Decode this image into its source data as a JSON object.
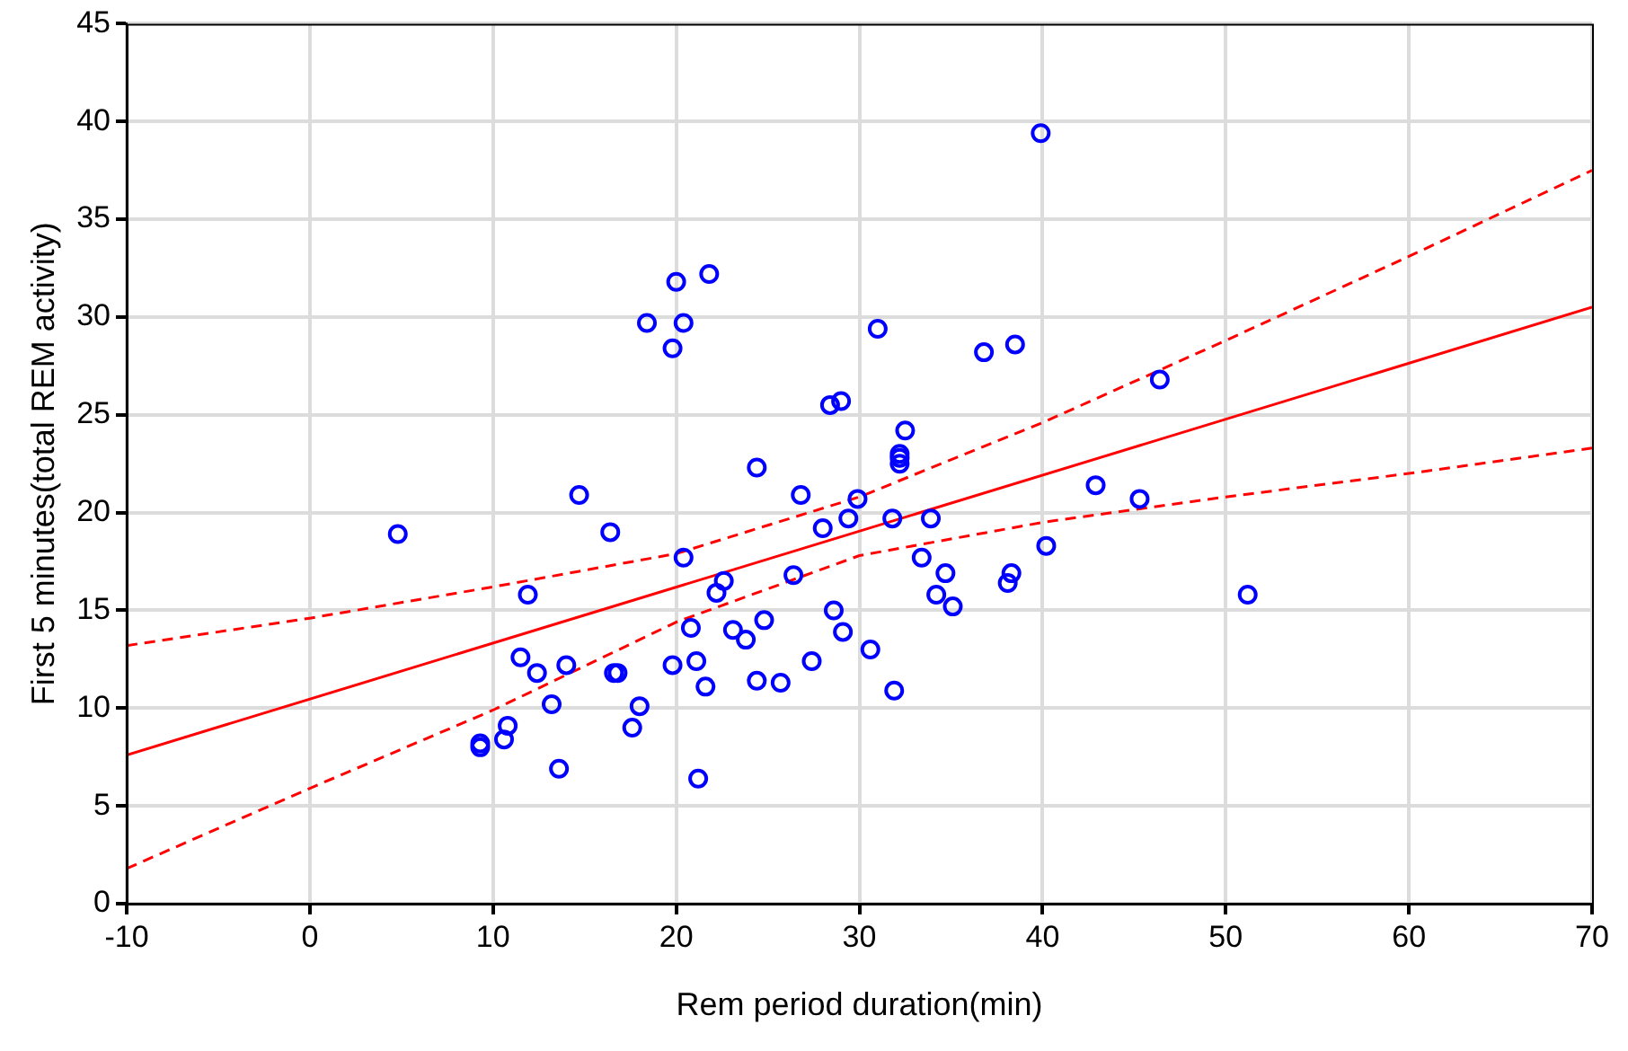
{
  "chart_data": {
    "type": "scatter",
    "xlabel": "Rem period duration(min)",
    "ylabel": "First 5 minutes(total REM activity)",
    "xlim": [
      -10,
      70
    ],
    "xticks": [
      -10,
      0,
      10,
      20,
      30,
      40,
      50,
      60,
      70
    ],
    "ylim": [
      0,
      45
    ],
    "yticks": [
      0,
      5,
      10,
      15,
      20,
      25,
      30,
      35,
      40,
      45
    ],
    "grid": true,
    "legend": false,
    "series": [
      {
        "type": "scatter",
        "color": "#0000ff",
        "marker": "circle",
        "x": [
          4.8,
          9.3,
          9.3,
          10.8,
          10.6,
          11.5,
          11.9,
          12.4,
          13.2,
          13.6,
          14.0,
          14.7,
          16.4,
          16.6,
          16.8,
          17.6,
          18.0,
          18.4,
          19.8,
          20.0,
          19.8,
          20.4,
          20.4,
          20.8,
          21.1,
          21.2,
          21.6,
          21.8,
          22.2,
          22.6,
          23.1,
          23.8,
          24.4,
          24.4,
          24.8,
          25.7,
          26.4,
          26.8,
          27.4,
          28.0,
          28.4,
          29.0,
          28.6,
          29.1,
          29.4,
          29.9,
          30.6,
          31.0,
          31.8,
          31.9,
          32.2,
          32.2,
          32.2,
          32.5,
          33.4,
          33.9,
          34.2,
          34.7,
          35.1,
          36.8,
          38.1,
          38.3,
          38.5,
          39.9,
          40.2,
          42.9,
          45.3,
          46.4,
          51.2
        ],
        "values": [
          18.9,
          8.2,
          8.0,
          9.1,
          8.4,
          12.6,
          15.8,
          11.8,
          10.2,
          6.9,
          12.2,
          20.9,
          19.0,
          11.8,
          11.8,
          9.0,
          10.1,
          29.7,
          28.4,
          31.8,
          12.2,
          29.7,
          17.7,
          14.1,
          12.4,
          6.4,
          11.1,
          32.2,
          15.9,
          16.5,
          14.0,
          13.5,
          22.3,
          11.4,
          14.5,
          11.3,
          16.8,
          20.9,
          12.4,
          19.2,
          25.5,
          25.7,
          15.0,
          13.9,
          19.7,
          20.7,
          13.0,
          29.4,
          19.7,
          10.9,
          23.0,
          22.8,
          22.5,
          24.2,
          17.7,
          19.7,
          15.8,
          16.9,
          15.2,
          28.2,
          16.4,
          16.9,
          28.6,
          39.4,
          18.3,
          21.4,
          20.7,
          26.8,
          15.8
        ]
      },
      {
        "type": "line",
        "color": "#ff0000",
        "marker": "none",
        "line_style": "solid",
        "x": [
          -10,
          70
        ],
        "values": [
          7.6,
          30.5
        ]
      },
      {
        "type": "line",
        "color": "#ff0000",
        "marker": "none",
        "line_style": "dashed",
        "x": [
          -10,
          0,
          10,
          20,
          30,
          40,
          50,
          60,
          70
        ],
        "values": [
          13.2,
          14.6,
          16.2,
          17.9,
          20.8,
          24.6,
          28.8,
          33.1,
          37.5
        ]
      },
      {
        "type": "line",
        "color": "#ff0000",
        "marker": "none",
        "line_style": "dashed",
        "x": [
          -10,
          0,
          10,
          20,
          30,
          40,
          50,
          60,
          70
        ],
        "values": [
          1.8,
          5.9,
          9.9,
          14.4,
          17.8,
          19.5,
          20.8,
          22.0,
          23.3
        ]
      }
    ]
  }
}
